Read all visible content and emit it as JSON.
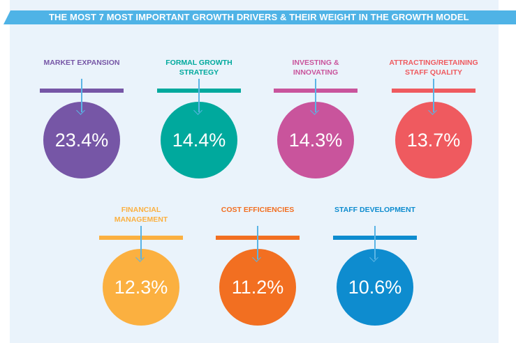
{
  "chart_data": {
    "type": "bubble",
    "title": "THE MOST 7 MOST IMPORTANT GROWTH DRIVERS & THEIR WEIGHT IN THE GROWTH MODEL",
    "items": [
      {
        "label": "MARKET EXPANSION",
        "value": "23.4%",
        "color": "#7656a6"
      },
      {
        "label": "FORMAL GROWTH STRATEGY",
        "value": "14.4%",
        "color": "#00a99d"
      },
      {
        "label": "INVESTING & INNOVATING",
        "value": "14.3%",
        "color": "#c9549c"
      },
      {
        "label": "ATTRACTING/RETAINING STAFF QUALITY",
        "value": "13.7%",
        "color": "#ef5a5f"
      },
      {
        "label": "FINANCIAL MANAGEMENT",
        "value": "12.3%",
        "color": "#fbb040"
      },
      {
        "label": "COST EFFICIENCIES",
        "value": "11.2%",
        "color": "#f26f21"
      },
      {
        "label": "STAFF DEVELOPMENT",
        "value": "10.6%",
        "color": "#0e8ccf"
      }
    ]
  }
}
